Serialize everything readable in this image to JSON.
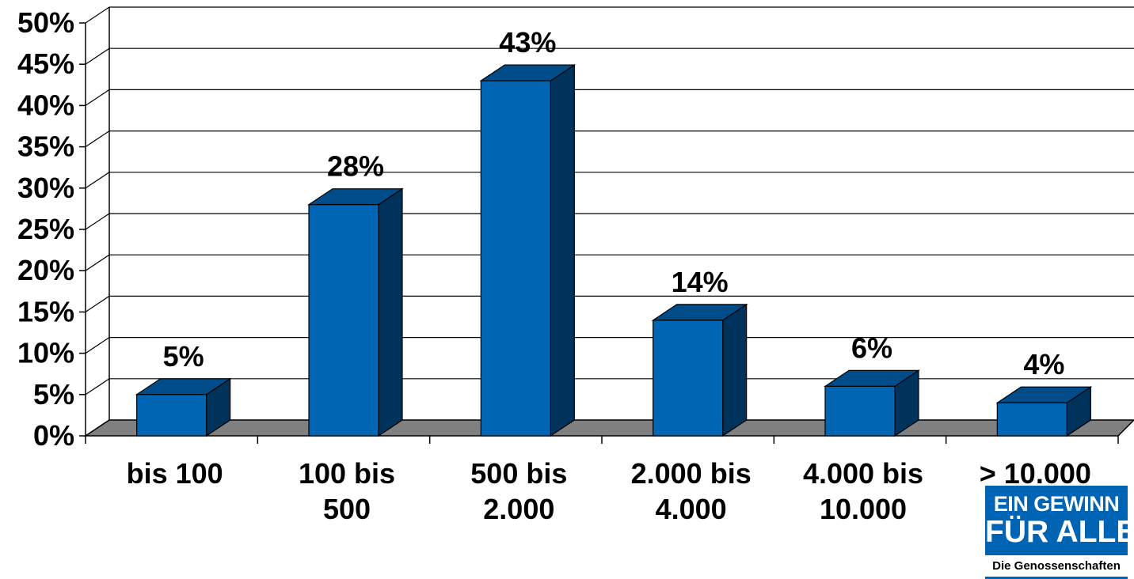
{
  "chart_data": {
    "type": "bar",
    "categories": [
      [
        "bis 100"
      ],
      [
        "100 bis",
        "500"
      ],
      [
        "500 bis",
        "2.000"
      ],
      [
        "2.000 bis",
        "4.000"
      ],
      [
        "4.000 bis",
        "10.000"
      ],
      [
        "> 10.000"
      ]
    ],
    "values": [
      5,
      28,
      43,
      14,
      6,
      4
    ],
    "value_labels": [
      "5%",
      "28%",
      "43%",
      "14%",
      "6%",
      "4%"
    ],
    "yticks": [
      "0%",
      "5%",
      "10%",
      "15%",
      "20%",
      "25%",
      "30%",
      "35%",
      "40%",
      "45%",
      "50%"
    ],
    "ylim": [
      0,
      50
    ],
    "grid": true,
    "style": "3d-column",
    "colors": {
      "bar_front": "#0066b3",
      "bar_top": "#004c88",
      "bar_side": "#00335c",
      "floor": "#808080"
    }
  },
  "logo": {
    "line1": "EIN GEWINN",
    "line2": "FÜR ALLE",
    "tagline": "Die Genossenschaften",
    "color": "#0064b4"
  }
}
